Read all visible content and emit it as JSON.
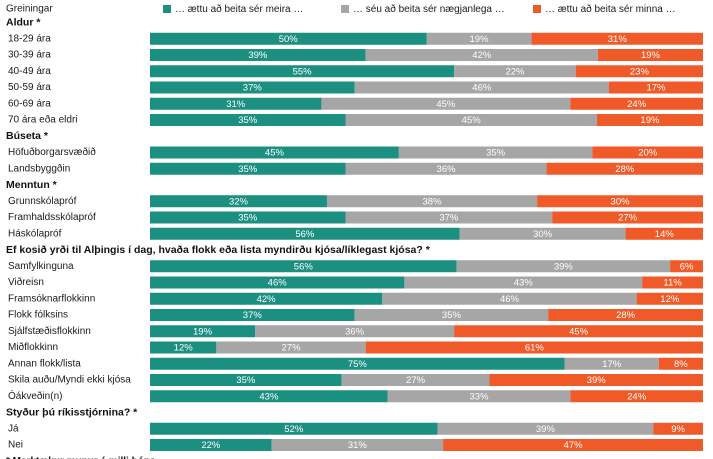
{
  "chart_data": {
    "type": "bar",
    "stacked": true,
    "orientation": "horizontal",
    "percent": true,
    "header_label": "Greiningar",
    "legend": [
      "… ættu að beita sér meira …",
      "… séu að beita sér nægjanlega …",
      "… ættu að beita sér minna …"
    ],
    "colors": [
      "#1b8f80",
      "#a6a6a6",
      "#f05a28"
    ],
    "groups": [
      {
        "title": "Aldur *",
        "rows": [
          {
            "label": "18-29 ára",
            "values": [
              50,
              19,
              31
            ]
          },
          {
            "label": "30-39 ára",
            "values": [
              39,
              42,
              19
            ]
          },
          {
            "label": "40-49 ára",
            "values": [
              55,
              22,
              23
            ]
          },
          {
            "label": "50-59 ára",
            "values": [
              37,
              46,
              17
            ]
          },
          {
            "label": "60-69 ára",
            "values": [
              31,
              45,
              24
            ]
          },
          {
            "label": "70 ára eða eldri",
            "values": [
              35,
              45,
              19
            ]
          }
        ]
      },
      {
        "title": "Búseta *",
        "rows": [
          {
            "label": "Höfuðborgarsvæðið",
            "values": [
              45,
              35,
              20
            ]
          },
          {
            "label": "Landsbyggðin",
            "values": [
              35,
              36,
              28
            ]
          }
        ]
      },
      {
        "title": "Menntun *",
        "rows": [
          {
            "label": "Grunnskólapróf",
            "values": [
              32,
              38,
              30
            ]
          },
          {
            "label": "Framhaldsskólapróf",
            "values": [
              35,
              37,
              27
            ]
          },
          {
            "label": "Háskólapróf",
            "values": [
              56,
              30,
              14
            ]
          }
        ]
      },
      {
        "title": "Ef kosið yrði til Alþingis í dag, hvaða flokk eða lista myndirðu kjósa/líklegast kjósa? *",
        "rows": [
          {
            "label": "Samfylkinguna",
            "values": [
              56,
              39,
              6
            ]
          },
          {
            "label": "Viðreisn",
            "values": [
              46,
              43,
              11
            ]
          },
          {
            "label": "Framsóknarflokkinn",
            "values": [
              42,
              46,
              12
            ]
          },
          {
            "label": "Flokk fólksins",
            "values": [
              37,
              35,
              28
            ]
          },
          {
            "label": "Sjálfstæðisflokkinn",
            "values": [
              19,
              36,
              45
            ]
          },
          {
            "label": "Miðflokkinn",
            "values": [
              12,
              27,
              61
            ]
          },
          {
            "label": "Annan flokk/lista",
            "values": [
              75,
              17,
              8
            ]
          },
          {
            "label": "Skila auðu/Myndi ekki kjósa",
            "values": [
              35,
              27,
              39
            ]
          },
          {
            "label": "Óákveðin(n)",
            "values": [
              43,
              33,
              24
            ]
          }
        ]
      },
      {
        "title": "Styður þú ríkisstjórnina? *",
        "rows": [
          {
            "label": "Já",
            "values": [
              52,
              39,
              9
            ]
          },
          {
            "label": "Nei",
            "values": [
              22,
              31,
              47
            ]
          }
        ]
      }
    ],
    "footnote": "* Marktækur munur á milli hópa"
  }
}
